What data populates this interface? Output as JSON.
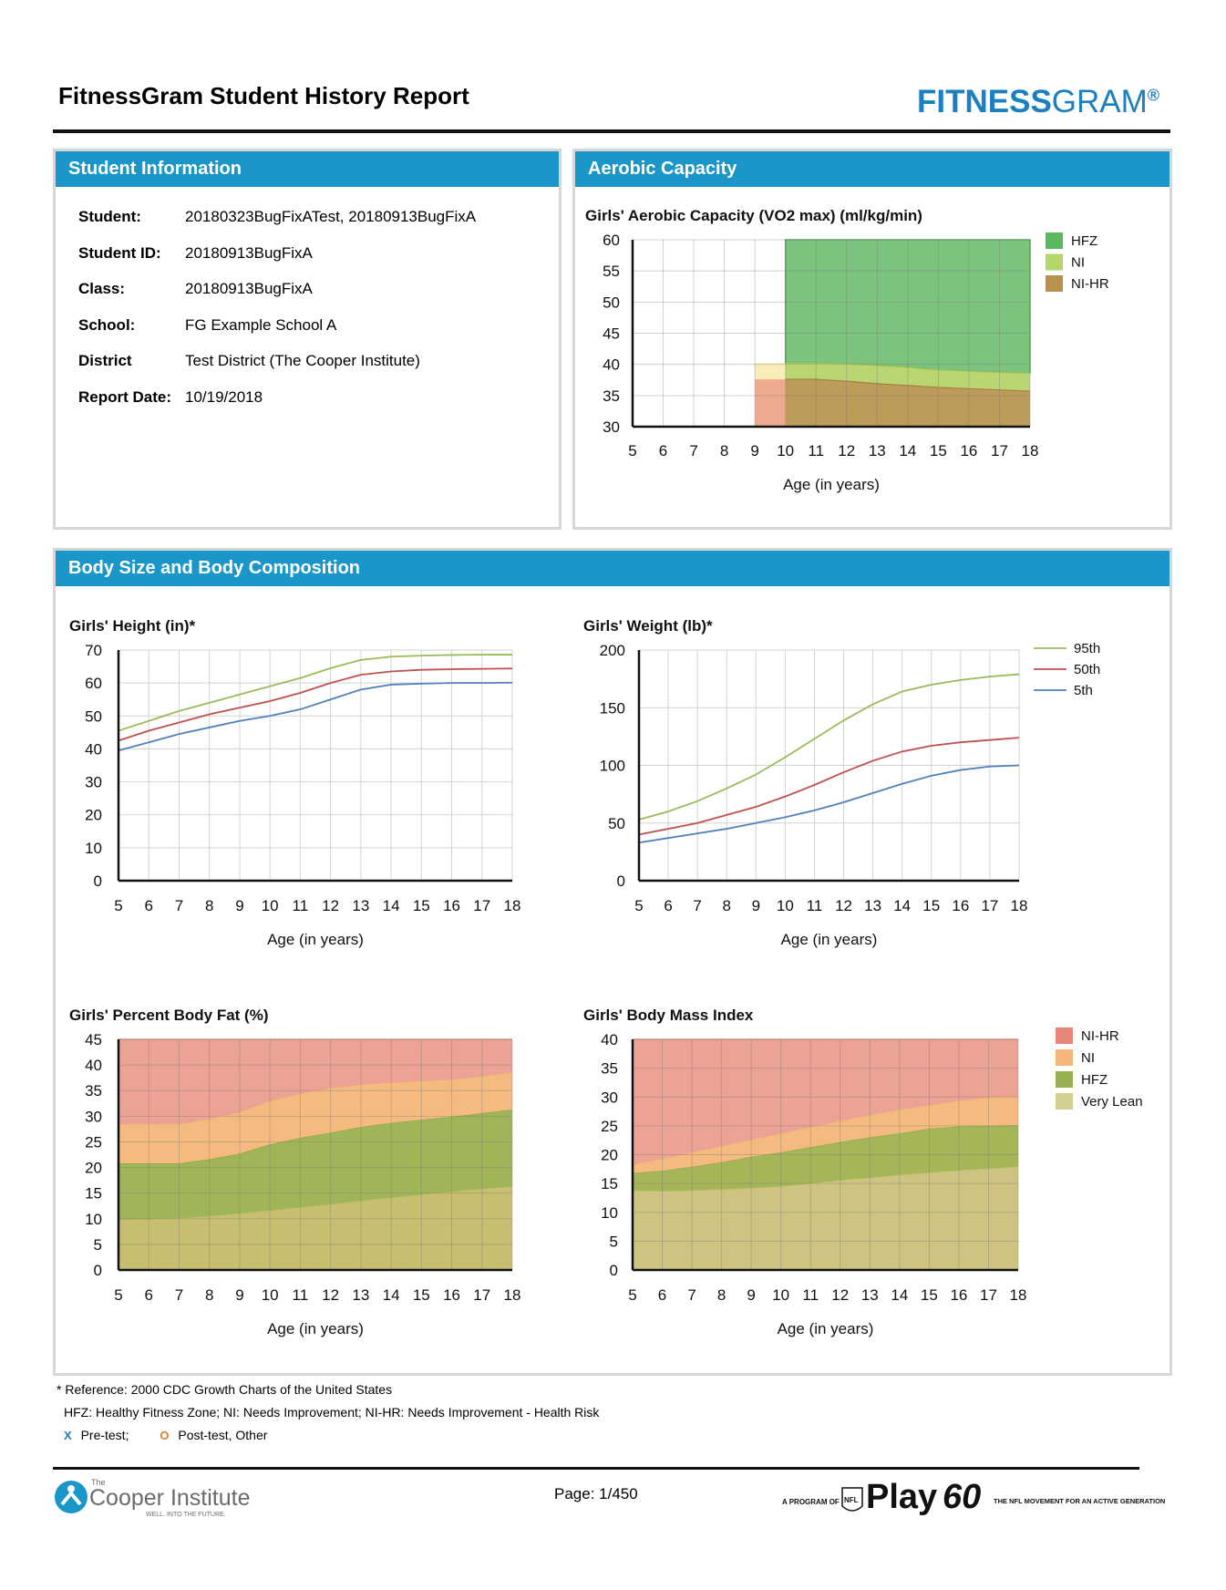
{
  "header": {
    "title": "FitnessGram Student History Report",
    "logo_bold": "FITNESS",
    "logo_light": "GRAM",
    "logo_reg": "®"
  },
  "student_info": {
    "heading": "Student Information",
    "rows": [
      {
        "label": "Student:",
        "value": "20180323BugFixATest, 20180913BugFixA"
      },
      {
        "label": "Student ID:",
        "value": "20180913BugFixA"
      },
      {
        "label": "Class:",
        "value": "20180913BugFixA"
      },
      {
        "label": "School:",
        "value": "FG Example School A"
      },
      {
        "label": "District",
        "value": "Test District (The Cooper Institute)"
      },
      {
        "label": "Report Date:",
        "value": "10/19/2018"
      }
    ]
  },
  "aerobic_panel": {
    "heading": "Aerobic Capacity"
  },
  "body_panel": {
    "heading": "Body Size and Body Composition"
  },
  "chart_data": [
    {
      "id": "aerobic",
      "type": "area",
      "title": "Girls' Aerobic Capacity (VO2 max) (ml/kg/min)",
      "xlabel": "Age (in years)",
      "ylabel": "",
      "x": [
        5,
        6,
        7,
        8,
        9,
        10,
        11,
        12,
        13,
        14,
        15,
        16,
        17,
        18
      ],
      "xlim": [
        5,
        18
      ],
      "ylim": [
        30,
        60
      ],
      "yticks": [
        30,
        35,
        40,
        45,
        50,
        55,
        60
      ],
      "grid": true,
      "legend_position": "right",
      "legend": [
        {
          "name": "HFZ",
          "color": "#5cb85c"
        },
        {
          "name": "NI",
          "color": "#b5d56a"
        },
        {
          "name": "NI-HR",
          "color": "#b8924d"
        }
      ],
      "partial": {
        "x": [
          9,
          10
        ],
        "ni_upper": 40.2,
        "nihr_upper": 37.6
      },
      "series": [
        {
          "name": "HFZ upper",
          "x": [
            10,
            18
          ],
          "values": [
            60,
            60
          ]
        },
        {
          "name": "NI upper",
          "x": [
            10,
            11,
            12,
            13,
            14,
            15,
            16,
            17,
            18
          ],
          "values": [
            40.2,
            40.2,
            40.1,
            39.8,
            39.5,
            39.1,
            38.9,
            38.7,
            38.6
          ]
        },
        {
          "name": "NI-HR upper",
          "x": [
            10,
            11,
            12,
            13,
            14,
            15,
            16,
            17,
            18
          ],
          "values": [
            37.6,
            37.6,
            37.3,
            36.9,
            36.6,
            36.3,
            36.1,
            35.9,
            35.7
          ]
        }
      ]
    },
    {
      "id": "height",
      "type": "line",
      "title": "Girls' Height (in)*",
      "xlabel": "Age (in years)",
      "ylabel": "",
      "x": [
        5,
        6,
        7,
        8,
        9,
        10,
        11,
        12,
        13,
        14,
        15,
        16,
        17,
        18
      ],
      "xlim": [
        5,
        18
      ],
      "ylim": [
        0,
        70
      ],
      "yticks": [
        0,
        10,
        20,
        30,
        40,
        50,
        60,
        70
      ],
      "grid": true,
      "series": [
        {
          "name": "95th",
          "color": "#9bbb59",
          "values": [
            45.5,
            48.5,
            51.5,
            54,
            56.5,
            59,
            61.5,
            64.5,
            67,
            68,
            68.3,
            68.5,
            68.6,
            68.6
          ]
        },
        {
          "name": "50th",
          "color": "#c0504d",
          "values": [
            42.5,
            45.5,
            48,
            50.5,
            52.5,
            54.5,
            57,
            60,
            62.5,
            63.5,
            64,
            64.2,
            64.3,
            64.4
          ]
        },
        {
          "name": "5th",
          "color": "#4f81bd",
          "values": [
            39.5,
            42,
            44.5,
            46.5,
            48.5,
            50,
            52,
            55,
            58,
            59.5,
            59.8,
            60,
            60,
            60.1
          ]
        }
      ]
    },
    {
      "id": "weight",
      "type": "line",
      "title": "Girls' Weight (lb)*",
      "xlabel": "Age (in years)",
      "ylabel": "",
      "x": [
        5,
        6,
        7,
        8,
        9,
        10,
        11,
        12,
        13,
        14,
        15,
        16,
        17,
        18
      ],
      "xlim": [
        5,
        18
      ],
      "ylim": [
        0,
        200
      ],
      "yticks": [
        0,
        50,
        100,
        150,
        200
      ],
      "grid": true,
      "legend_position": "right",
      "legend": [
        {
          "name": "95th",
          "color": "#9bbb59"
        },
        {
          "name": "50th",
          "color": "#c0504d"
        },
        {
          "name": "5th",
          "color": "#4f81bd"
        }
      ],
      "series": [
        {
          "name": "95th",
          "color": "#9bbb59",
          "values": [
            53,
            60,
            69,
            80,
            92,
            107,
            123,
            139,
            153,
            164,
            170,
            174,
            177,
            179
          ]
        },
        {
          "name": "50th",
          "color": "#c0504d",
          "values": [
            40,
            45,
            50,
            57,
            64,
            73,
            83,
            94,
            104,
            112,
            117,
            120,
            122,
            124
          ]
        },
        {
          "name": "5th",
          "color": "#4f81bd",
          "values": [
            33,
            37,
            41,
            45,
            50,
            55,
            61,
            68,
            76,
            84,
            91,
            96,
            99,
            100
          ]
        }
      ]
    },
    {
      "id": "bodyfat",
      "type": "area",
      "title": "Girls' Percent Body Fat (%)",
      "xlabel": "Age (in years)",
      "ylabel": "",
      "x": [
        5,
        6,
        7,
        8,
        9,
        10,
        11,
        12,
        13,
        14,
        15,
        16,
        17,
        18
      ],
      "xlim": [
        5,
        18
      ],
      "ylim": [
        0,
        45
      ],
      "yticks": [
        0,
        5,
        10,
        15,
        20,
        25,
        30,
        35,
        40,
        45
      ],
      "grid": true,
      "series": [
        {
          "name": "Very Lean upper",
          "values": [
            9.8,
            9.9,
            10.1,
            10.5,
            11,
            11.6,
            12.2,
            12.8,
            13.5,
            14.1,
            14.7,
            15.3,
            15.8,
            16.3
          ]
        },
        {
          "name": "HFZ upper",
          "values": [
            20.8,
            20.8,
            20.8,
            21.6,
            22.7,
            24.5,
            25.8,
            26.8,
            27.9,
            28.7,
            29.3,
            29.9,
            30.6,
            31.3
          ]
        },
        {
          "name": "NI upper",
          "values": [
            28.5,
            28.5,
            28.5,
            29.5,
            30.8,
            33,
            34.4,
            35.5,
            36.2,
            36.6,
            36.9,
            37.2,
            37.8,
            38.6
          ]
        },
        {
          "name": "NI-HR upper",
          "values": [
            45,
            45,
            45,
            45,
            45,
            45,
            45,
            45,
            45,
            45,
            45,
            45,
            45,
            45
          ]
        }
      ]
    },
    {
      "id": "bmi",
      "type": "area",
      "title": "Girls' Body Mass Index",
      "xlabel": "Age (in years)",
      "ylabel": "",
      "x": [
        5,
        6,
        7,
        8,
        9,
        10,
        11,
        12,
        13,
        14,
        15,
        16,
        17,
        18
      ],
      "xlim": [
        5,
        18
      ],
      "ylim": [
        0,
        40
      ],
      "yticks": [
        0,
        5,
        10,
        15,
        20,
        25,
        30,
        35,
        40
      ],
      "grid": true,
      "legend_position": "right",
      "legend": [
        {
          "name": "NI-HR",
          "color": "#e8867a"
        },
        {
          "name": "NI",
          "color": "#f3b77c"
        },
        {
          "name": "HFZ",
          "color": "#9aaf4d"
        },
        {
          "name": "Very Lean",
          "color": "#d3cf93"
        }
      ],
      "series": [
        {
          "name": "Very Lean upper",
          "values": [
            13.8,
            13.7,
            13.8,
            14,
            14.2,
            14.5,
            15,
            15.6,
            16,
            16.5,
            16.9,
            17.3,
            17.6,
            17.9
          ]
        },
        {
          "name": "HFZ upper",
          "values": [
            16.8,
            17.2,
            17.9,
            18.7,
            19.6,
            20.4,
            21.3,
            22.2,
            23,
            23.7,
            24.5,
            24.9,
            25,
            25.1
          ]
        },
        {
          "name": "NI upper",
          "values": [
            18.3,
            19.3,
            20.4,
            21.5,
            22.6,
            23.7,
            24.8,
            25.9,
            26.9,
            27.8,
            28.6,
            29.4,
            30,
            30.1
          ]
        },
        {
          "name": "NI-HR upper",
          "values": [
            40,
            40,
            40,
            40,
            40,
            40,
            40,
            40,
            40,
            40,
            40,
            40,
            40,
            40
          ]
        }
      ]
    }
  ],
  "notes": {
    "reference": "* Reference: 2000 CDC Growth Charts of the United States",
    "abbrev": "HFZ: Healthy Fitness Zone; NI: Needs Improvement; NI-HR: Needs Improvement - Health Risk",
    "pre_mark": "X",
    "pre_label": "Pre-test;",
    "post_mark": "O",
    "post_label": "Post-test, Other"
  },
  "footer": {
    "page": "Page: 1/450",
    "cooper_small": "The",
    "cooper_name": "Cooper Institute",
    "cooper_tagline": "WELL. INTO THE FUTURE.",
    "program_of": "A PROGRAM OF",
    "nfl": "NFL",
    "play": "Play",
    "sixty": "60",
    "play60_tag": "THE NFL MOVEMENT FOR AN ACTIVE GENERATION"
  },
  "colors": {
    "header_bar": "#1a97c8",
    "brand_blue": "#1b7fc0",
    "pre_test": "#1b7fc0",
    "post_test": "#e07b2a"
  }
}
